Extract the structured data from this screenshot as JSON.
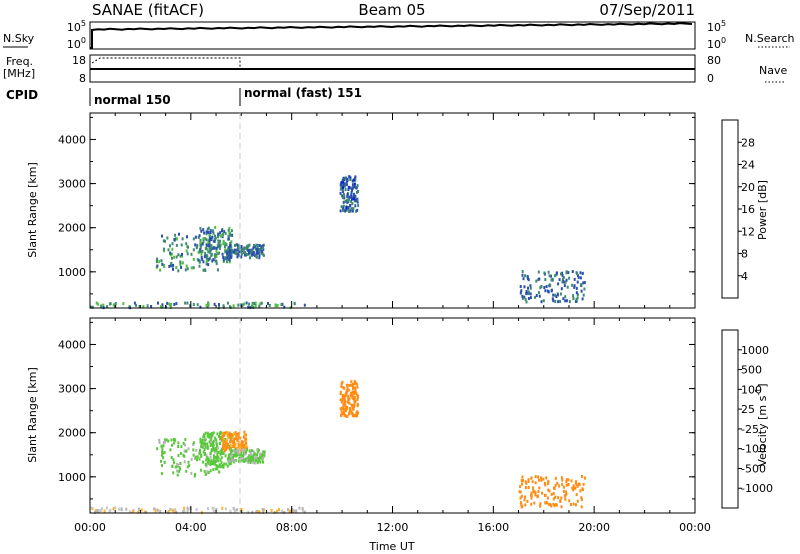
{
  "header": {
    "station": "SANAE (fitACF)",
    "beam": "Beam 05",
    "date": "07/Sep/2011"
  },
  "top_panels": {
    "nsky_label": "N.Sky",
    "nsky_ticks": [
      "10^5",
      "10^0"
    ],
    "nsearch_label": "N.Search",
    "nsearch_ticks": [
      "10^5",
      "10^0"
    ],
    "freq_label": "Freq.",
    "freq_unit": "[MHz]",
    "freq_ticks": [
      "18",
      "8"
    ],
    "nave_label": "Nave",
    "nave_ticks": [
      "80",
      "0"
    ],
    "cpid_label": "CPID",
    "cpid_segments": [
      {
        "name": "normal 150",
        "start_hour": 0,
        "end_hour": 6
      },
      {
        "name": "normal (fast) 151",
        "start_hour": 6,
        "end_hour": 24
      }
    ]
  },
  "colors": {
    "power": [
      "#0a1edc",
      "#2a4fb0",
      "#3f8a70",
      "#52c03c",
      "#ffd21e",
      "#ffa51e",
      "#ff7814",
      "#f03c0a",
      "#e60000"
    ],
    "velocity": [
      "#e60000",
      "#ff5a0a",
      "#ff8c14",
      "#ffb428",
      "#c8c8c8",
      "#b4b4b4",
      "#5ac83c",
      "#3c9664",
      "#2850b4",
      "#1e3cc8"
    ]
  },
  "chart_data": [
    {
      "type": "heatmap",
      "title": "Power",
      "ylabel": "Slant Range [km]",
      "xlabel": "",
      "xlim_hours": [
        0,
        24
      ],
      "ylim": [
        180,
        4600
      ],
      "y_ticks": [
        1000,
        2000,
        3000,
        4000
      ],
      "colorbar_label": "Power [dB]",
      "colorbar_ticks": [
        "4",
        "8",
        "12",
        "16",
        "20",
        "24",
        "28"
      ],
      "colorbar_range": [
        0,
        32
      ],
      "regions": [
        {
          "name": "arc-a",
          "t": [
            2.6,
            5.1
          ],
          "r": [
            1050,
            1900
          ],
          "level": 8
        },
        {
          "name": "arc-b",
          "t": [
            4.3,
            5.6
          ],
          "r": [
            1250,
            2050
          ],
          "level": 7
        },
        {
          "name": "tail",
          "t": [
            5.4,
            6.9
          ],
          "r": [
            1350,
            1650
          ],
          "level": 6
        },
        {
          "name": "echo-10h",
          "t": [
            9.9,
            10.6
          ],
          "r": [
            2400,
            3200
          ],
          "level": 5
        },
        {
          "name": "patch-18h",
          "t": [
            17.0,
            19.6
          ],
          "r": [
            350,
            1050
          ],
          "level": 6
        },
        {
          "name": "ground-scatter",
          "t": [
            0.0,
            8.5
          ],
          "r": [
            220,
            330
          ],
          "level": 8
        }
      ]
    },
    {
      "type": "heatmap",
      "title": "Velocity",
      "ylabel": "Slant Range [km]",
      "xlabel": "Time UT",
      "xlim_hours": [
        0,
        24
      ],
      "ylim": [
        180,
        4600
      ],
      "y_ticks": [
        1000,
        2000,
        3000,
        4000
      ],
      "x_ticks": [
        "00:00",
        "04:00",
        "08:00",
        "12:00",
        "16:00",
        "20:00",
        "00:00"
      ],
      "colorbar_label": "Velocity [m s^-1]",
      "colorbar_ticks": [
        "-1000",
        "-500",
        "-100",
        "-25",
        "25",
        "100",
        "500",
        "1000"
      ],
      "regions": [
        {
          "name": "arc-a",
          "t": [
            2.6,
            5.1
          ],
          "r": [
            1050,
            1900
          ],
          "velocity": 150
        },
        {
          "name": "arc-b",
          "t": [
            4.3,
            5.6
          ],
          "r": [
            1250,
            2050
          ],
          "velocity": 200
        },
        {
          "name": "arc-red",
          "t": [
            5.2,
            6.2
          ],
          "r": [
            1600,
            2050
          ],
          "velocity": -150
        },
        {
          "name": "tail",
          "t": [
            5.4,
            6.9
          ],
          "r": [
            1350,
            1650
          ],
          "velocity": 120
        },
        {
          "name": "echo-10h",
          "t": [
            9.9,
            10.6
          ],
          "r": [
            2400,
            3200
          ],
          "velocity": -200
        },
        {
          "name": "patch-18h",
          "t": [
            17.0,
            19.6
          ],
          "r": [
            350,
            1050
          ],
          "velocity": -200
        },
        {
          "name": "ground-scatter",
          "t": [
            0.0,
            8.5
          ],
          "r": [
            220,
            330
          ],
          "velocity": 0
        }
      ]
    }
  ]
}
